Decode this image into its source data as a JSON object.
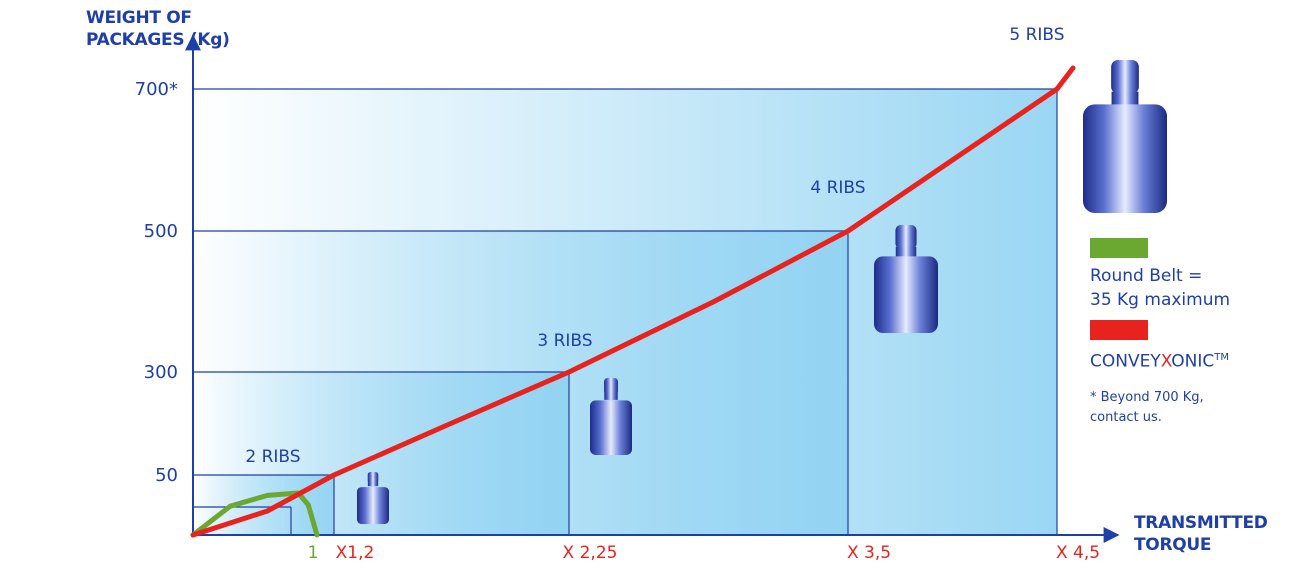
{
  "chart_data": {
    "type": "line",
    "title": "",
    "ylabel_lines": [
      "WEIGHT OF",
      "PACKAGES (Kg)"
    ],
    "xlabel_lines": [
      "TRANSMITTED",
      "TORQUE"
    ],
    "y_ticks": [
      {
        "value": 50,
        "label": "50"
      },
      {
        "value": 300,
        "label": "300"
      },
      {
        "value": 500,
        "label": "500"
      },
      {
        "value": 700,
        "label": "700*"
      }
    ],
    "x_ticks": [
      {
        "value": 1.2,
        "label": "X1,2"
      },
      {
        "value": 2.25,
        "label": "X 2,25"
      },
      {
        "value": 3.5,
        "label": "X 3,5"
      },
      {
        "value": 4.5,
        "label": "X 4,5"
      }
    ],
    "round_belt_tick": {
      "value": 1,
      "label": "1"
    },
    "ribs": [
      {
        "label": "2 RIBS",
        "torque": 1.2,
        "weight": 50
      },
      {
        "label": "3 RIBS",
        "torque": 2.25,
        "weight": 300
      },
      {
        "label": "4 RIBS",
        "torque": 3.5,
        "weight": 500
      },
      {
        "label": "5 RIBS",
        "torque": 4.5,
        "weight": 700
      }
    ],
    "series": [
      {
        "name": "CONVEYXONIC™",
        "color": "#e8231e",
        "x": [
          0,
          0.6,
          1.2,
          1.7,
          2.25,
          2.9,
          3.5,
          4.0,
          4.5,
          4.6
        ],
        "y": [
          0,
          20,
          50,
          170,
          300,
          400,
          500,
          600,
          700,
          730
        ]
      },
      {
        "name": "Round Belt = 35 Kg maximum",
        "color": "#6aa832",
        "x": [
          0,
          0.3,
          0.6,
          0.85,
          0.93,
          1.0
        ],
        "y": [
          0,
          24,
          33,
          35,
          25,
          0
        ]
      }
    ],
    "legend_placement": "right",
    "grid": false
  },
  "legend": {
    "round_belt": {
      "color": "#6aa832",
      "line1": "Round Belt =",
      "line2": "35 Kg maximum"
    },
    "conveyxonic": {
      "color": "#e8231e",
      "prefix": "CONVEY",
      "highlight": "X",
      "suffix": "ONIC",
      "mark": "TM"
    },
    "note": {
      "line1": "* Beyond 700 Kg,",
      "line2": "contact us."
    }
  },
  "colors": {
    "text": "#1f3fa8",
    "axis": "#1f3fa8",
    "fill": "#8fd2f2",
    "highlight_x": "#e8231e"
  }
}
